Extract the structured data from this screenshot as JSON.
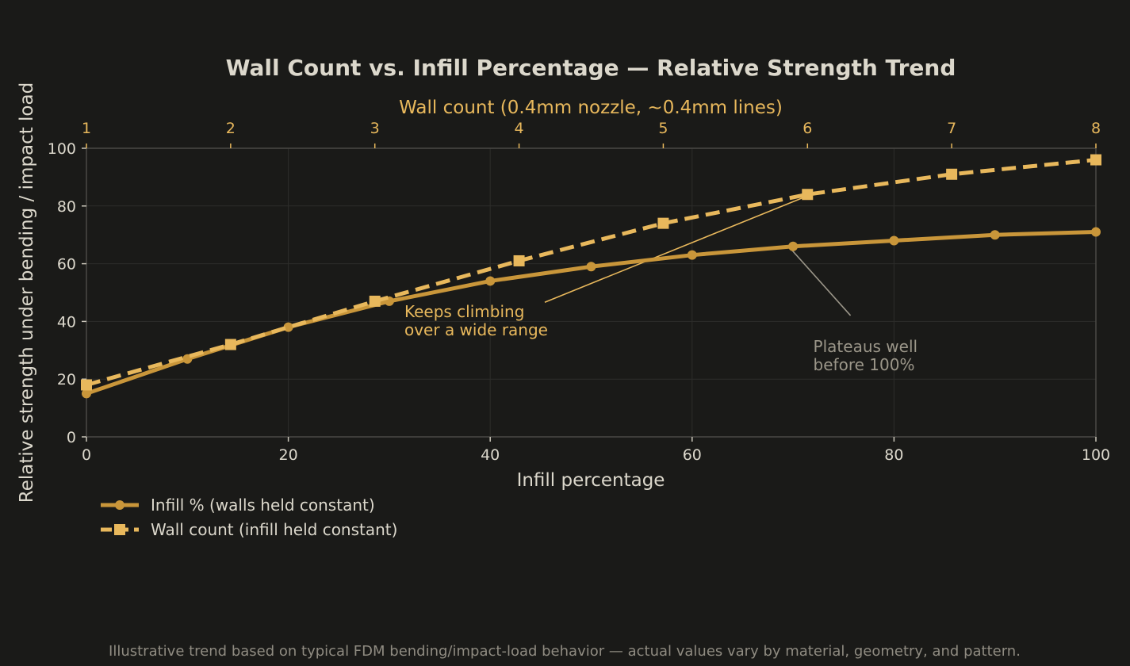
{
  "chart_data": {
    "type": "line",
    "title": "Wall Count vs. Infill Percentage — Relative Strength Trend",
    "xlabel": "Infill percentage",
    "ylabel": "Relative strength under bending / impact load",
    "x2label": "Wall count (0.4mm nozzle, ~0.4mm lines)",
    "xlim": [
      0,
      100
    ],
    "ylim": [
      0,
      100
    ],
    "x2lim": [
      1,
      8
    ],
    "xticks": [
      0,
      20,
      40,
      60,
      80,
      100
    ],
    "yticks": [
      0,
      20,
      40,
      60,
      80,
      100
    ],
    "x2ticks": [
      1,
      2,
      3,
      4,
      5,
      6,
      7,
      8
    ],
    "grid": true,
    "legend_position": "bottom-left",
    "series": [
      {
        "name": "Infill % (walls held constant)",
        "axis": "bottom",
        "style": "solid",
        "marker": "circle",
        "color": "#c9963a",
        "x": [
          0,
          10,
          20,
          30,
          40,
          50,
          60,
          70,
          80,
          90,
          100
        ],
        "y": [
          15,
          27,
          38,
          47,
          54,
          59,
          63,
          66,
          68,
          70,
          71
        ]
      },
      {
        "name": "Wall count (infill held constant)",
        "axis": "top",
        "style": "dashed",
        "marker": "square",
        "color": "#e8b85c",
        "x": [
          1,
          2,
          3,
          4,
          5,
          6,
          7,
          8
        ],
        "y": [
          18,
          32,
          47,
          61,
          74,
          84,
          91,
          96
        ]
      }
    ],
    "annotations": [
      {
        "lines": [
          "Keeps climbing",
          "over a wide range"
        ],
        "series": 1,
        "point_x": 6,
        "point_y": 84,
        "text_x": 31.5,
        "text_y": 45,
        "color": "#e8b85c"
      },
      {
        "lines": [
          "Plateaus well",
          "before 100%"
        ],
        "series": 0,
        "point_x": 70,
        "point_y": 66,
        "text_x": 72,
        "text_y": 36,
        "color": "#9b9689"
      }
    ],
    "footnote": "Illustrative trend based on typical FDM bending/impact-load behavior — actual values vary by material, geometry, and pattern."
  }
}
